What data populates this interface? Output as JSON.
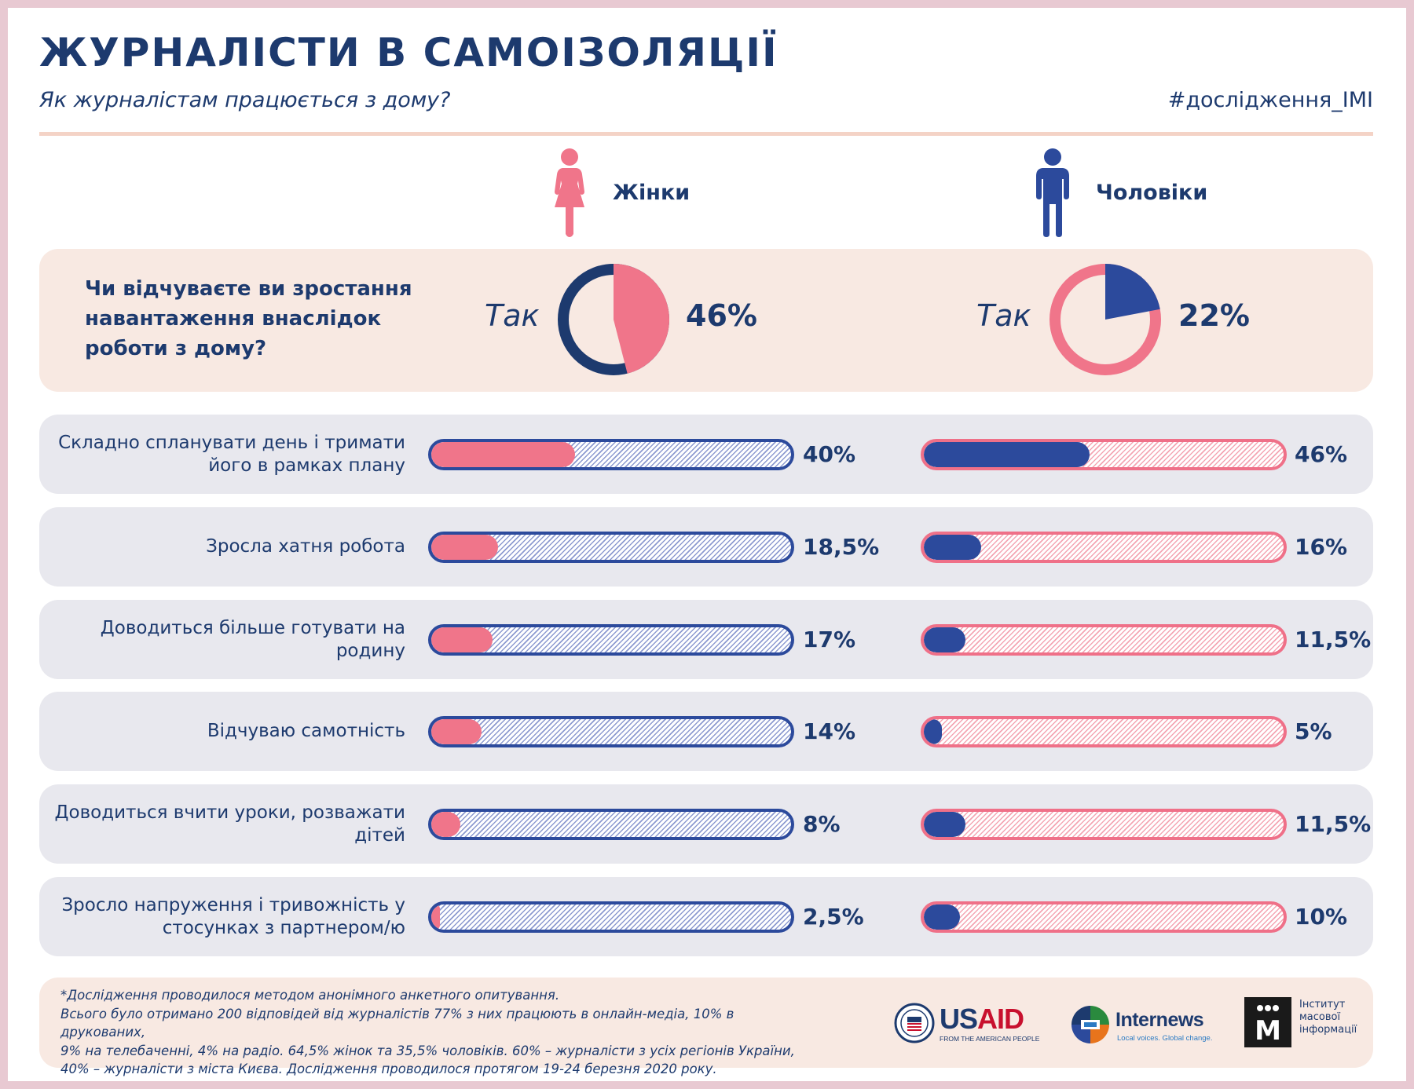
{
  "header": {
    "title": "ЖУРНАЛІСТИ В САМОІЗОЛЯЦІЇ",
    "subtitle": "Як журналістам працюється з дому?",
    "hashtag": "#дослідження_IMI"
  },
  "genders": {
    "women": "Жінки",
    "men": "Чоловіки"
  },
  "colors": {
    "navy": "#1d3a6e",
    "blue": "#2c4a9c",
    "pink": "#f0758a",
    "cream": "#f8e9e2",
    "grey": "#e8e8ee"
  },
  "question": {
    "text": "Чи відчуваєте ви зростання навантаження внаслідок роботи з дому?",
    "women_answer": "Так",
    "men_answer": "Так",
    "women_pct_label": "46%",
    "men_pct_label": "22%"
  },
  "rows": [
    {
      "label": "Складно спланувати день і тримати його в рамках плану",
      "women_label": "40%",
      "men_label": "46%"
    },
    {
      "label": "Зросла хатня робота",
      "women_label": "18,5%",
      "men_label": "16%"
    },
    {
      "label": "Доводиться більше готувати на родину",
      "women_label": "17%",
      "men_label": "11,5%"
    },
    {
      "label": "Відчуваю самотність",
      "women_label": "14%",
      "men_label": "5%"
    },
    {
      "label": "Доводиться вчити уроки, розважати дітей",
      "women_label": "8%",
      "men_label": "11,5%"
    },
    {
      "label": "Зросло напруження і тривожність у стосунках з партнером/ю",
      "women_label": "2,5%",
      "men_label": "10%"
    }
  ],
  "chart_data": [
    {
      "type": "pie",
      "categories": [
        "Так",
        ""
      ],
      "values": [
        46,
        54
      ]
    },
    {
      "type": "pie",
      "categories": [
        "Так",
        ""
      ],
      "values": [
        22,
        78
      ]
    },
    {
      "type": "bar",
      "categories": [
        "Складно спланувати день і тримати його в рамках плану",
        "Зросла хатня робота",
        "Доводиться більше готувати на родину",
        "Відчуваю самотність",
        "Доводиться вчити уроки, розважати дітей",
        "Зросло напруження і тривожність у стосунках з партнером/ю"
      ],
      "series": [
        {
          "name": "Жінки",
          "values": [
            40,
            18.5,
            17,
            14,
            8,
            2.5
          ]
        },
        {
          "name": "Чоловіки",
          "values": [
            46,
            16,
            11.5,
            5,
            11.5,
            10
          ]
        }
      ],
      "ylim": [
        0,
        100
      ]
    }
  ],
  "footer": {
    "line1": "*Дослідження проводилося методом анонімного анкетного опитування.",
    "line2": "Всього було отримано 200 відповідей від журналістів 77% з них працюють в онлайн-медіа, 10% в друкованих,",
    "line3": "9% на телебаченні, 4% на радіо. 64,5% жінок та 35,5% чоловіків. 60% – журналісти з усіх регіонів України,",
    "line4": "40% – журналісти з міста Києва. Дослідження проводилося протягом 19-24 березня 2020 року."
  },
  "logos": {
    "usaid_us": "US",
    "usaid_aid": "AID",
    "usaid_tag": "FROM THE AMERICAN PEOPLE",
    "internews_name": "Internews",
    "internews_tag": "Local voices. Global change.",
    "imi_mark": "M",
    "imi_line1": "Інститут",
    "imi_line2": "масової",
    "imi_line3": "інформації"
  }
}
